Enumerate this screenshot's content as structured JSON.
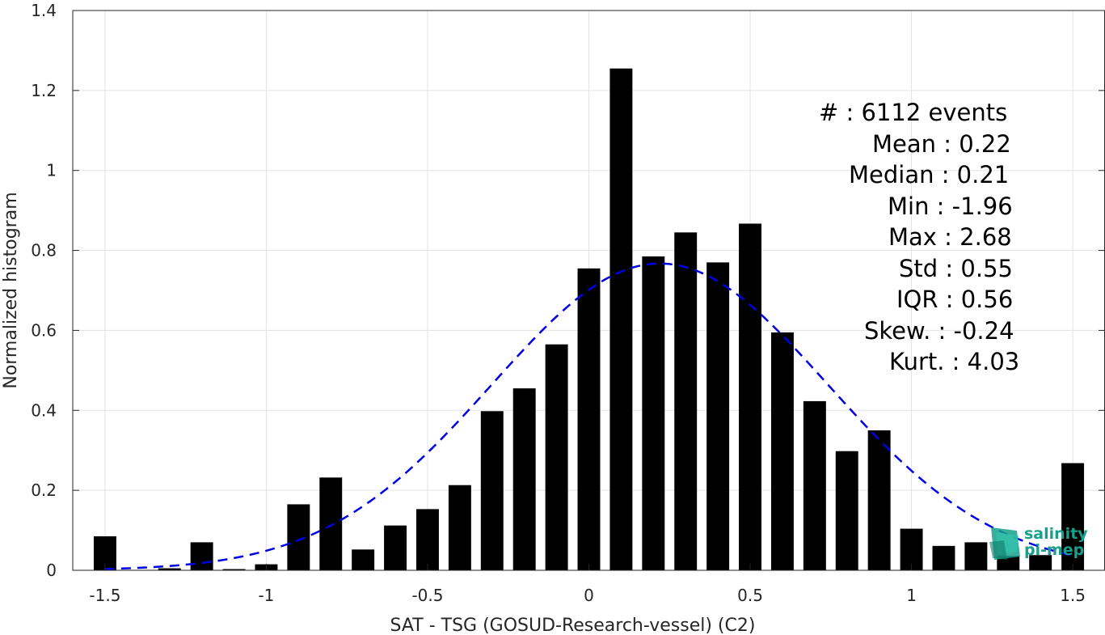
{
  "chart_data": {
    "type": "bar",
    "xlabel": "SAT - TSG (GOSUD-Research-vessel) (C2)",
    "ylabel": "Normalized histogram",
    "xlim": [
      -1.6,
      1.6
    ],
    "ylim": [
      0,
      1.4
    ],
    "xticks": [
      -1.5,
      -1,
      -0.5,
      0,
      0.5,
      1,
      1.5
    ],
    "xtick_labels": [
      "-1.5",
      "-1",
      "-0.5",
      "0",
      "0.5",
      "1",
      "1.5"
    ],
    "yticks": [
      0,
      0.2,
      0.4,
      0.6,
      0.8,
      1,
      1.2,
      1.4
    ],
    "ytick_labels": [
      "0",
      "0.2",
      "0.4",
      "0.6",
      "0.8",
      "1",
      "1.2",
      "1.4"
    ],
    "grid": true,
    "bar_color": "#000000",
    "bar_width": 0.07,
    "bins": [
      -1.5,
      -1.4,
      -1.3,
      -1.2,
      -1.1,
      -1.0,
      -0.9,
      -0.8,
      -0.7,
      -0.6,
      -0.5,
      -0.4,
      -0.3,
      -0.2,
      -0.1,
      0.0,
      0.1,
      0.2,
      0.3,
      0.4,
      0.5,
      0.6,
      0.7,
      0.8,
      0.9,
      1.0,
      1.1,
      1.2,
      1.3,
      1.4,
      1.5
    ],
    "values": [
      0.085,
      0.0,
      0.005,
      0.07,
      0.003,
      0.015,
      0.165,
      0.232,
      0.052,
      0.112,
      0.153,
      0.213,
      0.398,
      0.455,
      0.565,
      0.755,
      1.255,
      0.785,
      0.845,
      0.77,
      0.867,
      0.595,
      0.423,
      0.298,
      0.35,
      0.104,
      0.061,
      0.07,
      0.036,
      0.038,
      0.268
    ],
    "fit": {
      "type": "normal",
      "mean": 0.22,
      "std": 0.52,
      "color": "#0000e6",
      "style": "dashed"
    }
  },
  "stats": {
    "count": "#  : 6112 events",
    "mean": "Mean : 0.22",
    "median": "Median : 0.21",
    "min": "Min : -1.96",
    "max": "Max : 2.68",
    "std": "Std : 0.55",
    "iqr": "IQR : 0.56",
    "skew": "Skew. : -0.24",
    "kurt": "Kurt. : 4.03"
  },
  "logo": {
    "line1": "salinity",
    "line2": "pi-mep",
    "color": "#17a08b"
  }
}
